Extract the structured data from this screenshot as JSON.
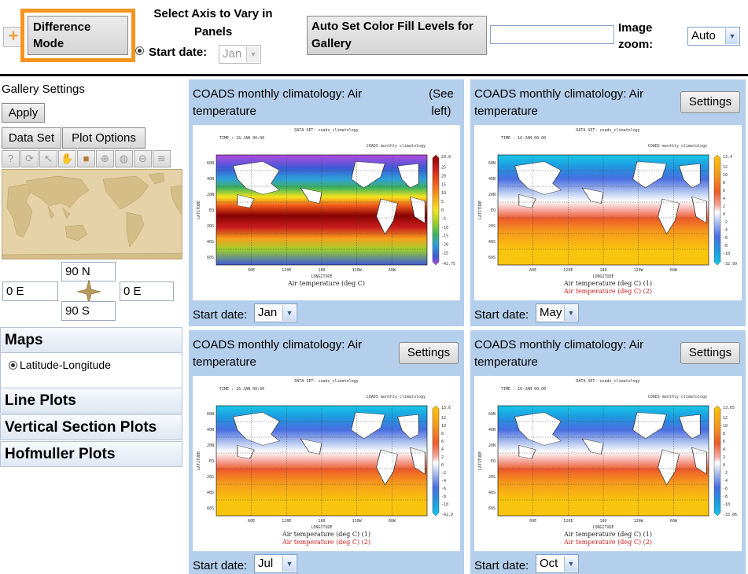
{
  "toolbar": {
    "difference_mode_label": "Difference Mode",
    "axis_title": "Select Axis to Vary in Panels",
    "start_date_label": "Start date:",
    "start_date_value": "Jan",
    "auto_fill_label": "Auto Set Color Fill Levels for Gallery",
    "image_zoom_label": "Image zoom:",
    "image_zoom_value": "Auto",
    "plus_symbol": "+"
  },
  "sidebar": {
    "title": "Gallery Settings",
    "apply_label": "Apply",
    "data_set_label": "Data Set",
    "plot_options_label": "Plot Options",
    "tools": [
      "help-icon",
      "reset-icon",
      "pointer-icon",
      "hand-icon",
      "select-box-icon",
      "zoom-in-icon",
      "globe-icon",
      "zoom-out-icon",
      "layers-icon"
    ],
    "north": "90 N",
    "south": "90 S",
    "west": "0 E",
    "east": "0 E",
    "sections": {
      "maps": "Maps",
      "maps_option": "Latitude-Longitude",
      "line_plots": "Line Plots",
      "vertical_section": "Vertical Section Plots",
      "hofmuller": "Hofmuller Plots"
    }
  },
  "plot_common": {
    "header_left": "TIME : 16-JAN 00:00",
    "header_center": "DATA SET: coads_climatology",
    "header_right": "COADS monthly climatology",
    "lat_labels": [
      "60N",
      "40N",
      "20N",
      "EQ",
      "20S",
      "40S",
      "60S"
    ],
    "lon_labels": [
      "60E",
      "120E",
      "180",
      "120W",
      "60W"
    ],
    "xlabel": "LONGITUDE",
    "ylabel": "LATITUDE"
  },
  "panels": [
    {
      "title": "COADS monthly climatology: Air temperature",
      "note": "(See left)",
      "start_date_label": "Start date:",
      "start_date_value": "Jan",
      "caption_1": "Air temperature (deg C)",
      "caption_2": "",
      "colorbar_top": "29.8",
      "colorbar_bottom": "-42.75",
      "colorbar_ticks": [
        "25",
        "20",
        "15",
        "10",
        "5",
        "0",
        "-5",
        "-10",
        "-15",
        "-20",
        "-25"
      ],
      "colorscale": "rainbow"
    },
    {
      "title": "COADS monthly climatology: Air temperature",
      "settings_label": "Settings",
      "start_date_label": "Start date:",
      "start_date_value": "May",
      "caption_1": "Air temperature (deg C) (1)",
      "caption_2": "Air temperature (deg C) (2)",
      "colorbar_top": "13.4",
      "colorbar_bottom": "-32.99",
      "colorbar_ticks": [
        "12",
        "10",
        "8",
        "6",
        "4",
        "2",
        "0",
        "-2",
        "-4",
        "-6",
        "-8",
        "-10"
      ],
      "colorscale": "diverging"
    },
    {
      "title": "COADS monthly climatology: Air temperature",
      "settings_label": "Settings",
      "start_date_label": "Start date:",
      "start_date_value": "Jul",
      "caption_1": "Air temperature (deg C) (1)",
      "caption_2": "Air temperature (deg C) (2)",
      "colorbar_top": "13.6",
      "colorbar_bottom": "-42.9",
      "colorbar_ticks": [
        "12",
        "10",
        "8",
        "6",
        "4",
        "2",
        "0",
        "-2",
        "-4",
        "-6",
        "-8",
        "-10"
      ],
      "colorscale": "diverging"
    },
    {
      "title": "COADS monthly climatology: Air temperature",
      "settings_label": "Settings",
      "start_date_label": "Start date:",
      "start_date_value": "Oct",
      "caption_1": "Air temperature (deg C) (1)",
      "caption_2": "Air temperature (deg C) (2)",
      "colorbar_top": "13.65",
      "colorbar_bottom": "-33.06",
      "colorbar_ticks": [
        "12",
        "10",
        "8",
        "6",
        "4",
        "2",
        "0",
        "-2",
        "-4",
        "-6",
        "-8",
        "-10"
      ],
      "colorscale": "diverging"
    }
  ],
  "colors": {
    "accent_orange": "#f7941d",
    "panel_blue": "#b4cfeb"
  }
}
